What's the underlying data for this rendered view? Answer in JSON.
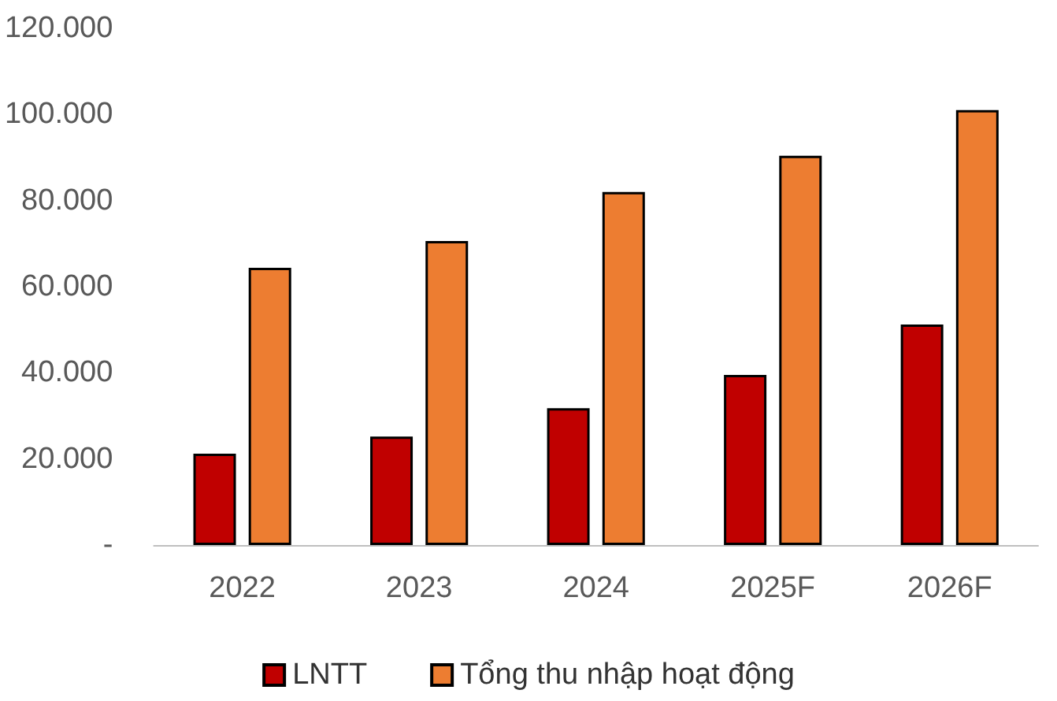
{
  "chart_data": {
    "type": "bar",
    "categories": [
      "2022",
      "2023",
      "2024",
      "2025F",
      "2026F"
    ],
    "series": [
      {
        "name": "LNTT",
        "color": "#c00000",
        "values": [
          21200,
          25200,
          31800,
          39500,
          51200
        ]
      },
      {
        "name": "Tổng thu nhập hoạt động",
        "color": "#ed7d31",
        "values": [
          64400,
          70600,
          82000,
          90400,
          101000
        ]
      }
    ],
    "ylim": [
      0,
      120000
    ],
    "yticks": [
      {
        "value": 0,
        "label": "-"
      },
      {
        "value": 20000,
        "label": "20.000"
      },
      {
        "value": 40000,
        "label": "40.000"
      },
      {
        "value": 60000,
        "label": "60.000"
      },
      {
        "value": 80000,
        "label": "80.000"
      },
      {
        "value": 100000,
        "label": "100.000"
      },
      {
        "value": 120000,
        "label": "120.000"
      }
    ],
    "grid": false,
    "legend": "bottom"
  }
}
